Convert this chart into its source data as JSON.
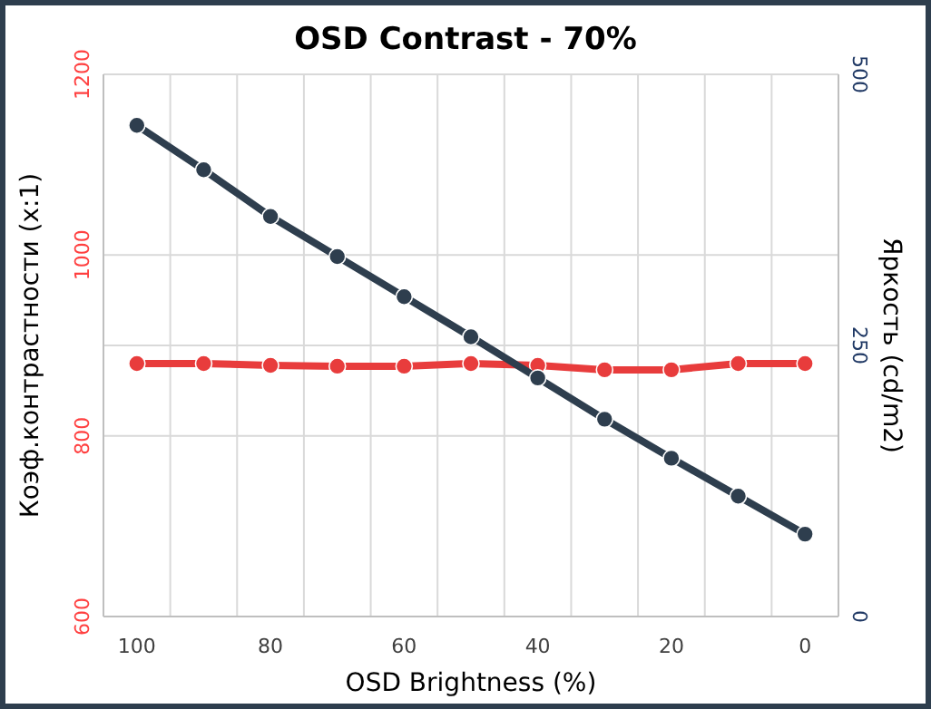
{
  "chart_data": {
    "type": "line",
    "title": "OSD Contrast - 70%",
    "xlabel": "OSD Brightness (%)",
    "ylabel": "Коэф.контрастности (x:1)",
    "y2label": "Яркость (cd/m2)",
    "categories": [
      "100",
      null,
      "80",
      null,
      "60",
      null,
      "40",
      null,
      "20",
      null,
      "0"
    ],
    "series": [
      {
        "color": "#e83c3c",
        "values": [
          880,
          880,
          878,
          877,
          877,
          880,
          878,
          873,
          873,
          880,
          880
        ]
      },
      {
        "color": "#2e3e4e",
        "axis": "y2",
        "values": [
          453,
          412,
          369,
          332,
          295,
          258,
          220,
          182,
          146,
          111,
          76
        ]
      }
    ],
    "ylim": [
      600,
      1200
    ],
    "yticks": [
      600,
      800,
      1000,
      1200
    ],
    "y2lim": [
      0,
      500
    ],
    "y2ticks": [
      0,
      250,
      500
    ],
    "grid": true,
    "marker": "circle",
    "line_style": "solid"
  }
}
